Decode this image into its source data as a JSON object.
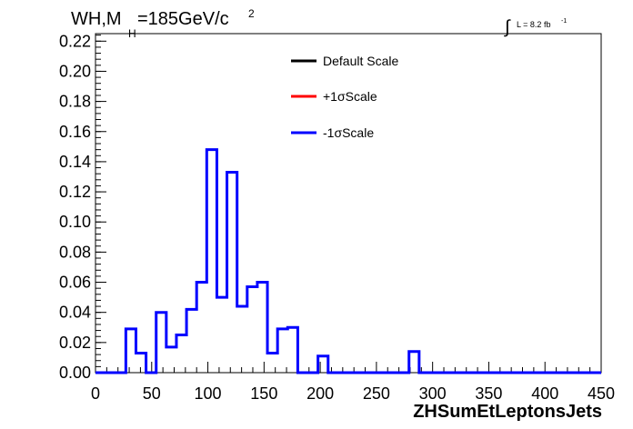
{
  "header": {
    "title_main": "WH,M",
    "title_sub": "H",
    "title_rest": "=185GeV/c",
    "title_sup": "2",
    "lumi_integral": "∫",
    "lumi_text": "L = 8.2 fb",
    "lumi_sup": "-1"
  },
  "legend": {
    "items": [
      {
        "label": "Default Scale",
        "color": "#000000"
      },
      {
        "label": "+1σScale",
        "color": "#ff0000"
      },
      {
        "label": "-1σScale",
        "color": "#0000ff"
      }
    ]
  },
  "chart_data": {
    "type": "histogram",
    "xlabel": "ZHSumEtLeptonsJets",
    "ylabel": "",
    "xlim": [
      0,
      450
    ],
    "ylim": [
      0,
      0.225
    ],
    "x_ticks": [
      0,
      50,
      100,
      150,
      200,
      250,
      300,
      350,
      400,
      450
    ],
    "x_tick_labels": [
      "0",
      "50",
      "100",
      "150",
      "200",
      "250",
      "300",
      "350",
      "400",
      "450"
    ],
    "y_ticks": [
      0,
      0.02,
      0.04,
      0.06,
      0.08,
      0.1,
      0.12,
      0.14,
      0.16,
      0.18,
      0.2,
      0.22
    ],
    "y_tick_labels": [
      "0.00",
      "0.02",
      "0.04",
      "0.06",
      "0.08",
      "0.10",
      "0.12",
      "0.14",
      "0.16",
      "0.18",
      "0.20",
      "0.22"
    ],
    "bin_edges": [
      0,
      9,
      18,
      27,
      36,
      45,
      54,
      63,
      72,
      81,
      90,
      99,
      108,
      117,
      126,
      135,
      144,
      153,
      162,
      171,
      180,
      189,
      198,
      207,
      216,
      225,
      234,
      243,
      252,
      261,
      270,
      279,
      288,
      297,
      306,
      315,
      324,
      333,
      342,
      351,
      360,
      369,
      378,
      387,
      396,
      405,
      414,
      423,
      432,
      441,
      450
    ],
    "series": [
      {
        "name": "-1σScale",
        "color": "#0000ff",
        "values": [
          0,
          0,
          0,
          0.029,
          0.013,
          0,
          0.04,
          0.017,
          0.025,
          0.042,
          0.06,
          0.148,
          0.05,
          0.133,
          0.044,
          0.057,
          0.06,
          0.013,
          0.029,
          0.03,
          0,
          0,
          0.011,
          0,
          0,
          0,
          0,
          0,
          0,
          0,
          0,
          0.014,
          0,
          0,
          0,
          0,
          0,
          0,
          0,
          0,
          0,
          0,
          0,
          0,
          0,
          0,
          0,
          0,
          0,
          0
        ]
      }
    ]
  }
}
